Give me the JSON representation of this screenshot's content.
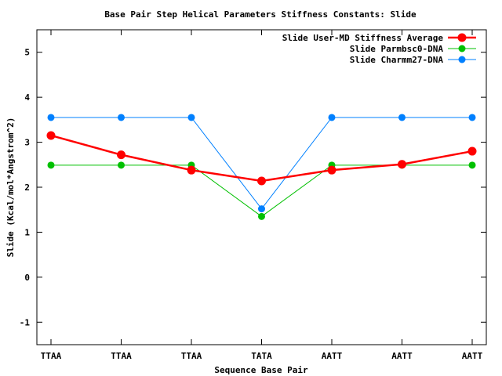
{
  "chart_data": {
    "type": "line",
    "title": "Base Pair Step Helical Parameters Stiffness Constants: Slide",
    "xlabel": "Sequence Base Pair",
    "ylabel": "Slide (Kcal/mol*Angstrom^2)",
    "categories": [
      "TTAA",
      "TTAA",
      "TTAA",
      "TATA",
      "AATT",
      "AATT",
      "AATT"
    ],
    "ylim": [
      -1.5,
      5.5
    ],
    "yticks": [
      -1,
      0,
      1,
      2,
      3,
      4,
      5
    ],
    "legend_position": "top-right",
    "grid": false,
    "series": [
      {
        "name": "Slide User-MD Stiffness Average",
        "color": "#ff0000",
        "values": [
          3.15,
          2.72,
          2.38,
          2.14,
          2.38,
          2.51,
          2.8
        ]
      },
      {
        "name": "Slide Parmbsc0-DNA",
        "color": "#00c000",
        "values": [
          2.49,
          2.49,
          2.49,
          1.35,
          2.49,
          2.49,
          2.49
        ]
      },
      {
        "name": "Slide Charmm27-DNA",
        "color": "#0080ff",
        "values": [
          3.55,
          3.55,
          3.55,
          1.52,
          3.55,
          3.55,
          3.55
        ]
      }
    ]
  }
}
